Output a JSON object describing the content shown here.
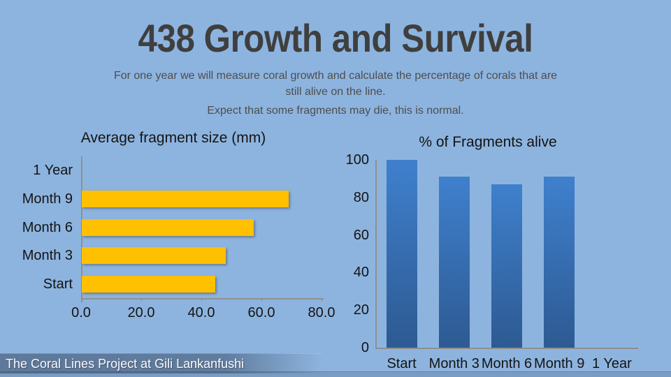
{
  "slide": {
    "title": "438 Growth and Survival",
    "subtitle_line1": "For one year we will measure coral growth and calculate the percentage of corals that are",
    "subtitle_line2": "still alive on the line.",
    "subtitle_line3": "Expect that some fragments may die, this is normal.",
    "footer": "The Coral Lines Project at Gili Lankanfushi",
    "colors": {
      "background": "#8db4df",
      "title_text": "#3f3f3f",
      "subtitle_text": "#4d4d4d",
      "axis_line": "#8f8f8f",
      "footer_text": "#f8fbff"
    }
  },
  "chart_data": [
    {
      "type": "bar",
      "orientation": "horizontal",
      "title": "Average fragment size (mm)",
      "categories": [
        "Start",
        "Month 3",
        "Month 6",
        "Month 9",
        "1 Year"
      ],
      "values": [
        44.4,
        47.8,
        57.2,
        68.9,
        0
      ],
      "category_order_top_to_bottom": [
        "1 Year",
        "Month 9",
        "Month 6",
        "Month 3",
        "Start"
      ],
      "x_tick_labels": [
        "0.0",
        "20.0",
        "40.0",
        "60.0",
        "80.0"
      ],
      "xlim": [
        0,
        80
      ],
      "xlabel": "",
      "ylabel": "",
      "grid": false,
      "legend": false,
      "bar_color": "#ffc000"
    },
    {
      "type": "bar",
      "orientation": "vertical",
      "title": "% of Fragments alive",
      "categories": [
        "Start",
        "Month 3",
        "Month 6",
        "Month 9",
        "1 Year"
      ],
      "values": [
        100,
        91,
        87,
        91,
        0
      ],
      "y_tick_labels": [
        "0",
        "20",
        "40",
        "60",
        "80",
        "100"
      ],
      "ylim": [
        0,
        100
      ],
      "xlabel": "",
      "ylabel": "",
      "grid": false,
      "legend": false,
      "bar_gradient_top": "#3f80cd",
      "bar_gradient_bottom": "#2d5a92"
    }
  ]
}
